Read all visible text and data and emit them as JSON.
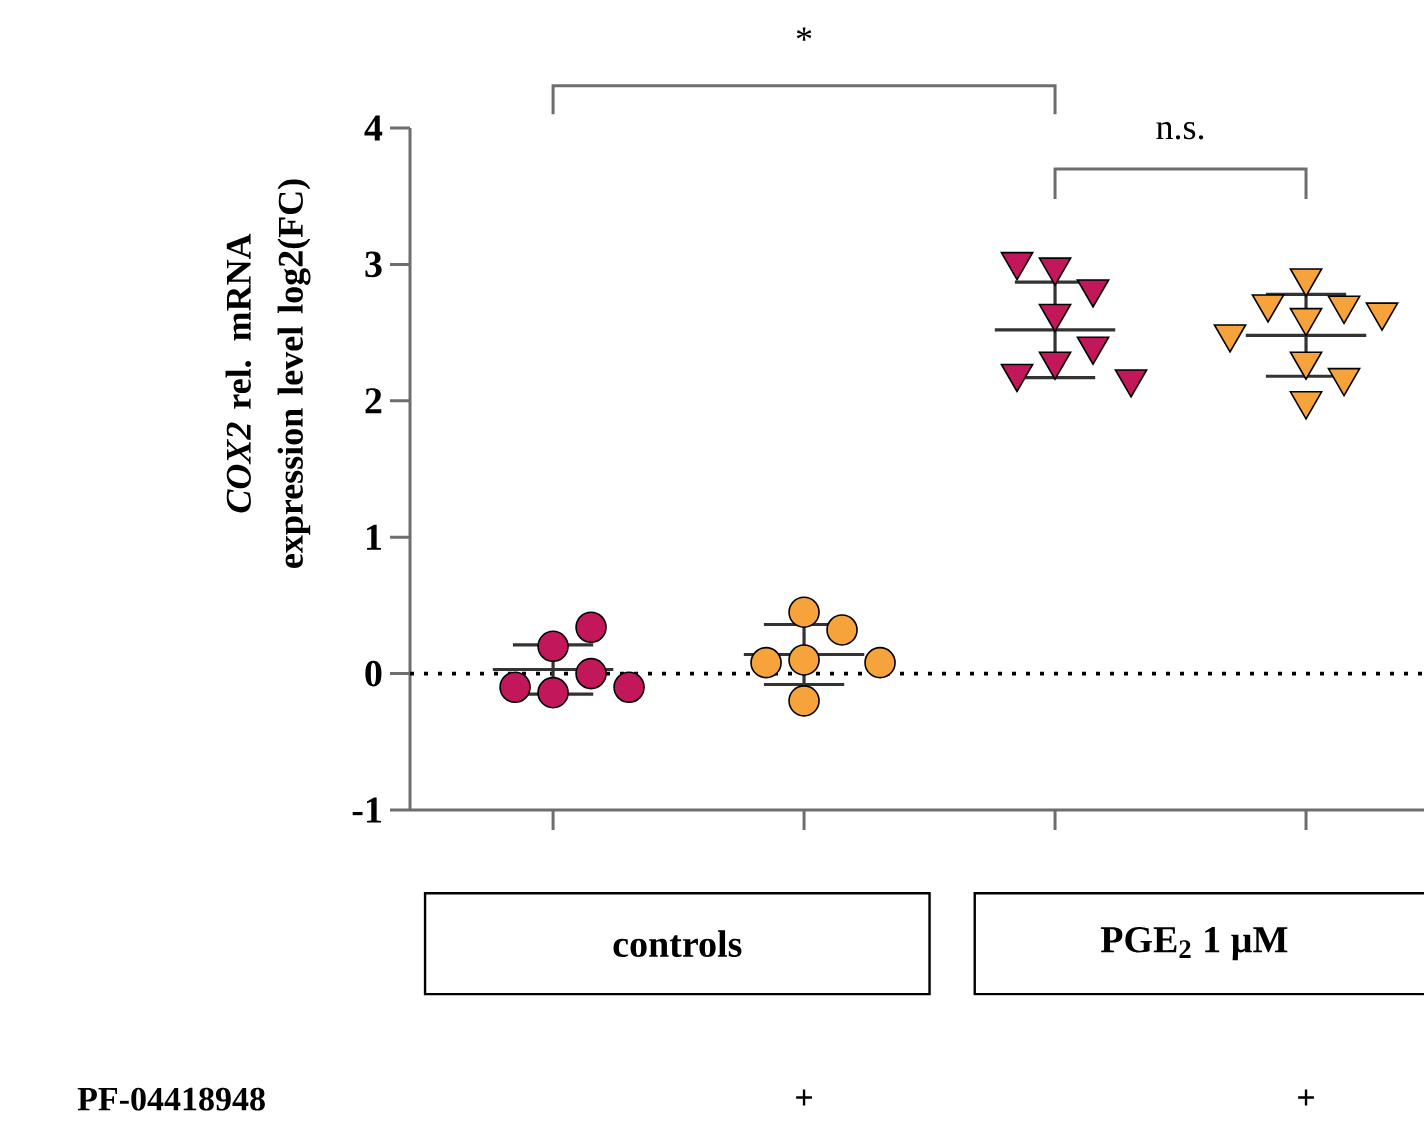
{
  "chart_data": {
    "type": "scatter",
    "ylabel": "*COX2* rel. mRNA expression level log2(FC)",
    "categories": [
      null,
      null,
      null,
      null
    ],
    "ylim": [
      -1,
      4
    ],
    "yticks": [
      -1,
      0,
      1,
      2,
      3,
      4
    ],
    "series": [
      {
        "marker": "circle",
        "colors": [
          "#c2185b",
          "#f7a33c",
          "#c2185b",
          "#f7a33c"
        ],
        "values": [
          0.2,
          0.1,
          null,
          null
        ]
      },
      {
        "marker": "circle",
        "colors": [
          "#c2185b",
          "#f7a33c",
          "#c2185b",
          "#f7a33c"
        ],
        "values": [
          0.34,
          0.32,
          null,
          null
        ]
      },
      {
        "marker": "circle",
        "colors": [
          "#c2185b",
          "#f7a33c",
          "#c2185b",
          "#f7a33c"
        ],
        "values": [
          -0.14,
          0.45,
          null,
          null
        ]
      },
      {
        "marker": "circle",
        "colors": [
          "#c2185b",
          "#f7a33c",
          "#c2185b",
          "#f7a33c"
        ],
        "values": [
          0.0,
          0.08,
          null,
          null
        ]
      },
      {
        "marker": "circle",
        "colors": [
          "#c2185b",
          "#f7a33c",
          "#c2185b",
          "#f7a33c"
        ],
        "values": [
          -0.1,
          0.08,
          null,
          null
        ]
      },
      {
        "marker": "circle",
        "colors": [
          "#c2185b",
          "#f7a33c",
          "#c2185b",
          "#f7a33c"
        ],
        "values": [
          -0.1,
          -0.2,
          null,
          null
        ]
      },
      {
        "marker": "triangle",
        "colors": [
          "#c2185b",
          "#f7a33c",
          "#c2185b",
          "#f7a33c"
        ],
        "values": [
          null,
          null,
          2.98,
          2.9
        ]
      },
      {
        "marker": "triangle",
        "colors": [
          "#c2185b",
          "#f7a33c",
          "#c2185b",
          "#f7a33c"
        ],
        "values": [
          null,
          null,
          2.64,
          2.7
        ]
      },
      {
        "marker": "triangle",
        "colors": [
          "#c2185b",
          "#f7a33c",
          "#c2185b",
          "#f7a33c"
        ],
        "values": [
          null,
          null,
          2.29,
          2.71
        ]
      },
      {
        "marker": "triangle",
        "colors": [
          "#c2185b",
          "#f7a33c",
          "#c2185b",
          "#f7a33c"
        ],
        "values": [
          null,
          null,
          2.82,
          2.61
        ]
      },
      {
        "marker": "triangle",
        "colors": [
          "#c2185b",
          "#f7a33c",
          "#c2185b",
          "#f7a33c"
        ],
        "values": [
          null,
          null,
          3.02,
          2.65
        ]
      },
      {
        "marker": "triangle",
        "colors": [
          "#c2185b",
          "#f7a33c",
          "#c2185b",
          "#f7a33c"
        ],
        "values": [
          null,
          null,
          2.4,
          2.49
        ]
      },
      {
        "marker": "triangle",
        "colors": [
          "#c2185b",
          "#f7a33c",
          "#c2185b",
          "#f7a33c"
        ],
        "values": [
          null,
          null,
          2.2,
          2.29
        ]
      },
      {
        "marker": "triangle",
        "colors": [
          "#c2185b",
          "#f7a33c",
          "#c2185b",
          "#f7a33c"
        ],
        "values": [
          null,
          null,
          2.16,
          2.17
        ]
      },
      {
        "marker": "triangle",
        "colors": [
          "#c2185b",
          "#f7a33c",
          "#c2185b",
          "#f7a33c"
        ],
        "values": [
          null,
          null,
          null,
          2.0
        ]
      },
      {
        "type": "box",
        "color": "#333333",
        "boxes": [
          {
            "low": -0.15,
            "q1": 0.03,
            "median": 0.03,
            "q3": 0.03,
            "high": 0.21
          },
          {
            "low": -0.08,
            "q1": 0.14,
            "median": 0.14,
            "q3": 0.14,
            "high": 0.36
          },
          {
            "low": 2.17,
            "q1": 2.52,
            "median": 2.52,
            "q3": 2.52,
            "high": 2.87
          },
          {
            "low": 2.18,
            "q1": 2.48,
            "median": 2.48,
            "q3": 2.48,
            "high": 2.78
          }
        ]
      }
    ],
    "ref_lines": [
      {
        "axis": "y",
        "value": 0,
        "line_style": "dotted",
        "color": "#000000"
      }
    ],
    "annotations": [
      "*",
      "n.s.",
      "controls",
      "PGE$_{2}$ 1 µM",
      "PF-04418948",
      "+",
      "+"
    ]
  }
}
